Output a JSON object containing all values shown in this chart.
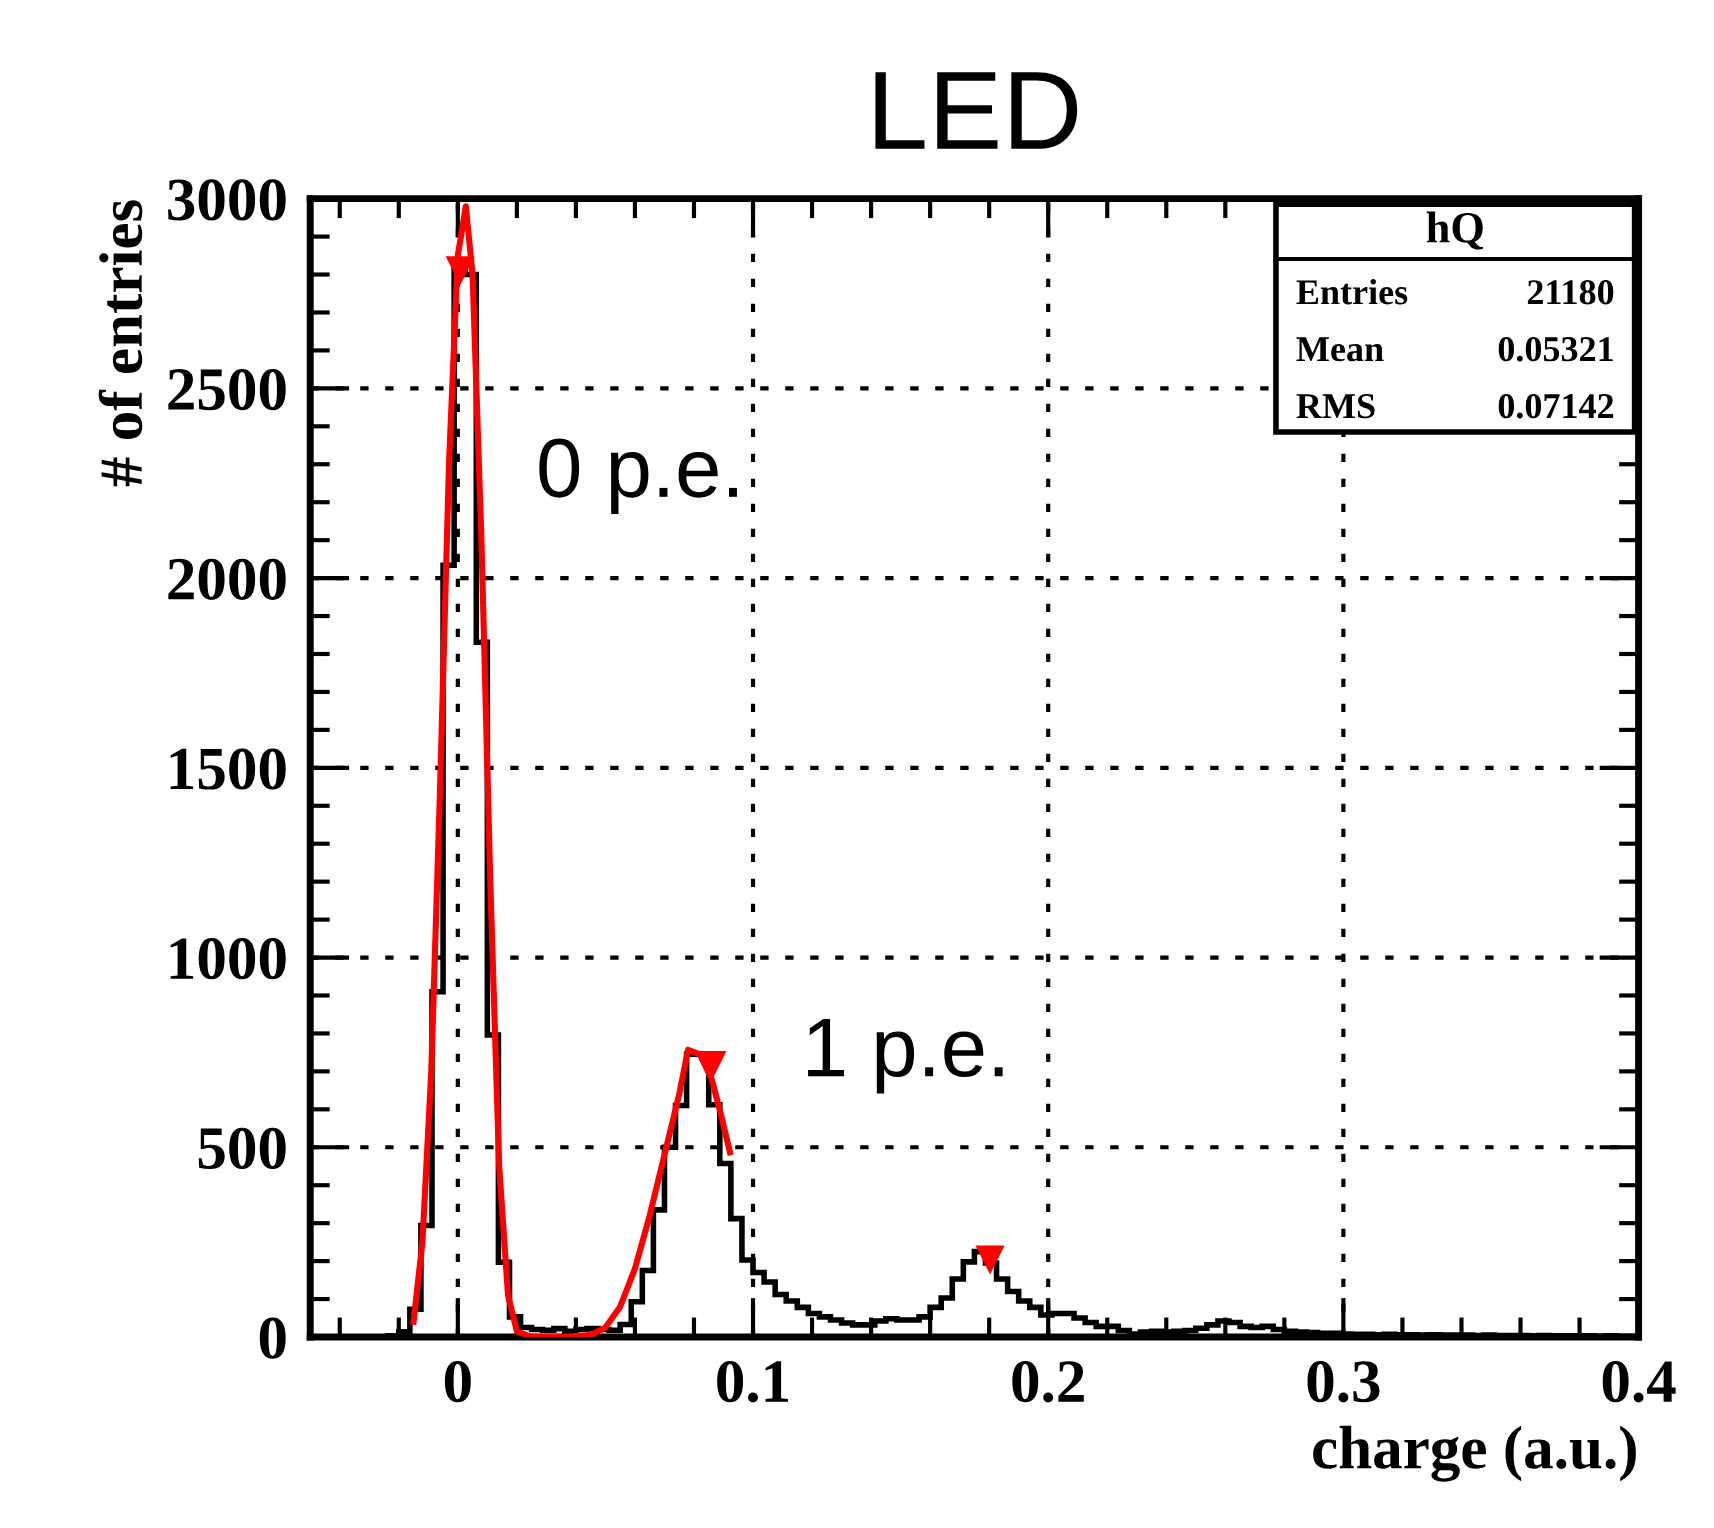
{
  "chart_data": {
    "type": "histogram",
    "title": "LED",
    "xlabel": "charge (a.u.)",
    "ylabel": "# of entries",
    "xlim": [
      -0.05,
      0.4
    ],
    "ylim": [
      0,
      3000
    ],
    "xticks": [
      0,
      0.1,
      0.2,
      0.3,
      0.4
    ],
    "yticks": [
      0,
      500,
      1000,
      1500,
      2000,
      2500,
      3000
    ],
    "grid": true,
    "series": [
      {
        "color": "#000000",
        "bins": [
          -0.05,
          -0.04625,
          -0.0425,
          -0.03875,
          -0.035,
          -0.03125,
          -0.0275,
          -0.02375,
          -0.02,
          -0.01625,
          -0.0125,
          -0.00875,
          -0.005,
          -0.00125,
          0.0025,
          0.00625,
          0.01,
          0.01375,
          0.0175,
          0.02125,
          0.025,
          0.02875,
          0.0325,
          0.03625,
          0.04,
          0.04375,
          0.0475,
          0.05125,
          0.055,
          0.05875,
          0.0625,
          0.06625,
          0.07,
          0.07375,
          0.0775,
          0.08125,
          0.085,
          0.08875,
          0.0925,
          0.09625,
          0.1,
          0.10375,
          0.1075,
          0.11125,
          0.115,
          0.11875,
          0.1225,
          0.12625,
          0.13,
          0.13375,
          0.1375,
          0.14125,
          0.145,
          0.14875,
          0.1525,
          0.15625,
          0.16,
          0.16375,
          0.1675,
          0.17125,
          0.175,
          0.17875,
          0.1825,
          0.18625,
          0.19,
          0.19375,
          0.1975,
          0.20125,
          0.205,
          0.20875,
          0.2125,
          0.21625,
          0.22,
          0.22375,
          0.2275,
          0.23125,
          0.235,
          0.23875,
          0.2425,
          0.24625,
          0.25,
          0.25375,
          0.2575,
          0.26125,
          0.265,
          0.26875,
          0.2725,
          0.27625,
          0.28,
          0.28375,
          0.2875,
          0.29125,
          0.295,
          0.29875,
          0.3025,
          0.30625,
          0.31,
          0.31375,
          0.3175,
          0.32125,
          0.325,
          0.32875,
          0.3325,
          0.33625,
          0.34,
          0.34375,
          0.3475,
          0.35125,
          0.355,
          0.35875,
          0.3625,
          0.36625,
          0.37,
          0.37375,
          0.3775,
          0.38125,
          0.385,
          0.38875,
          0.3925,
          0.39625,
          0.4
        ],
        "values": [
          0,
          0,
          0,
          0,
          0,
          0,
          0,
          3,
          14,
          73,
          294,
          910,
          2034,
          2820,
          2800,
          1831,
          796,
          197,
          53,
          25,
          20,
          18,
          22,
          15,
          20,
          22,
          20,
          18,
          33,
          93,
          175,
          335,
          500,
          610,
          745,
          745,
          612,
          457,
          312,
          203,
          170,
          145,
          112,
          95,
          78,
          62,
          53,
          45,
          37,
          32,
          32,
          42,
          48,
          45,
          45,
          53,
          78,
          103,
          153,
          198,
          225,
          195,
          153,
          120,
          95,
          78,
          58,
          62,
          62,
          50,
          38,
          28,
          28,
          17,
          8,
          13,
          15,
          13,
          15,
          17,
          23,
          32,
          42,
          38,
          28,
          25,
          28,
          20,
          15,
          13,
          12,
          10,
          10,
          8,
          7,
          7,
          6,
          7,
          6,
          6,
          5,
          6,
          5,
          5,
          5,
          4,
          5,
          4,
          4,
          4,
          3,
          4,
          3,
          3,
          3,
          3,
          2,
          3,
          2,
          2
        ]
      },
      {
        "type": "line",
        "color": "#ff0000",
        "x": [
          -0.015,
          -0.012,
          -0.009,
          -0.006,
          -0.003,
          0,
          0.0027,
          0.005,
          0.008,
          0.011,
          0.014,
          0.017,
          0.02,
          0.025,
          0.035,
          0.045,
          0.05,
          0.055,
          0.06,
          0.065,
          0.07,
          0.075,
          0.078,
          0.082,
          0.086,
          0.089,
          0.0922
        ],
        "values": [
          40,
          250,
          700,
          1450,
          2300,
          2850,
          2980,
          2800,
          2100,
          1200,
          450,
          110,
          15,
          0,
          0,
          5,
          25,
          80,
          180,
          320,
          480,
          640,
          757,
          745,
          680,
          590,
          487
        ]
      },
      {
        "type": "scatter",
        "color": "#ff0000",
        "marker": "triangle",
        "x": [
          0.0008,
          0.0861,
          0.1803
        ],
        "values": [
          2810,
          715,
          203
        ]
      }
    ],
    "annotations": [
      "0 p.e.",
      "1 p.e.",
      "hQ",
      "Entries",
      "21180",
      "Mean",
      "0.05321",
      "RMS",
      "0.07142"
    ]
  }
}
